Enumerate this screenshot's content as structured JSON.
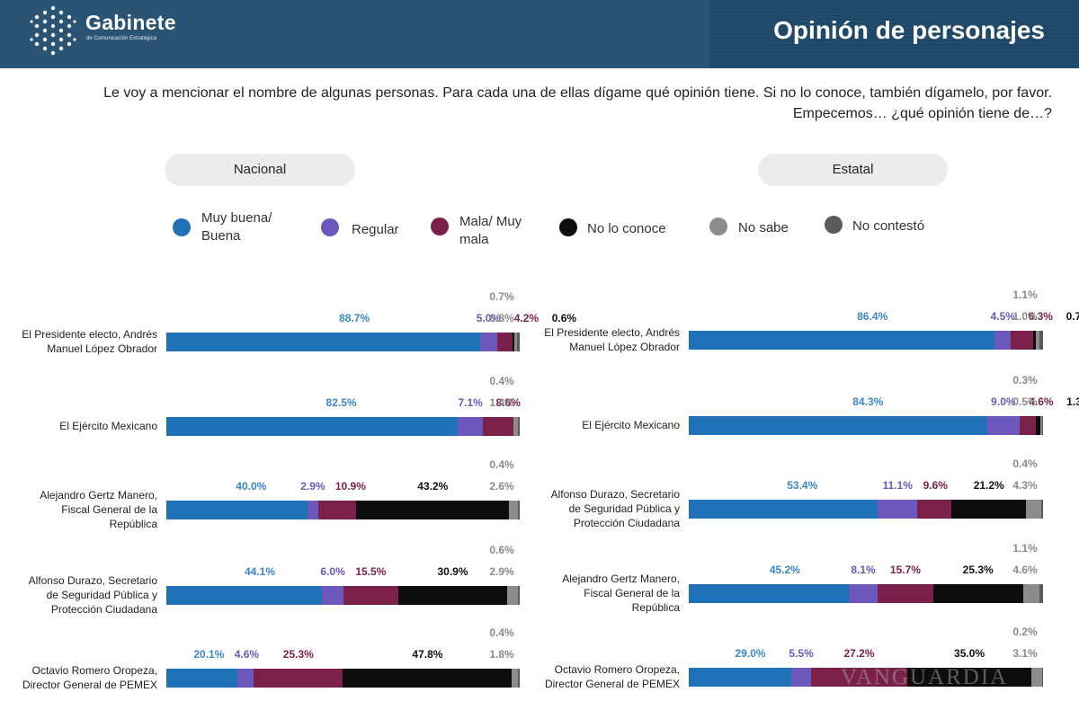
{
  "header": {
    "brand_name": "Gabinete",
    "brand_sub": "de Comunicación Estratégica",
    "title": "Opinión de personajes",
    "logo_icon": "dotted-cube-logo-icon"
  },
  "question": "Le voy a mencionar el nombre de algunas personas. Para cada una de ellas dígame qué opinión tiene. Si no lo conoce, también dígamelo, por favor. Empecemos… ¿qué opinión tiene de…?",
  "watermark": "VANGUARDIA",
  "legend": [
    {
      "label": "Muy buena/ Buena",
      "color": "#1f72b8"
    },
    {
      "label": "Regular",
      "color": "#6c57bd"
    },
    {
      "label": "Mala/ Muy mala",
      "color": "#7b1f4b"
    },
    {
      "label": "No lo conoce",
      "color": "#0d0d0d"
    },
    {
      "label": "No sabe",
      "color": "#8c8c8c"
    },
    {
      "label": "No contestó",
      "color": "#5a5a5a"
    }
  ],
  "chart_data": [
    {
      "type": "bar",
      "stacked": true,
      "orientation": "horizontal",
      "title": "Nacional",
      "series_names": [
        "Muy buena/ Buena",
        "Regular",
        "Mala/ Muy mala",
        "No lo conoce",
        "No sabe",
        "No contestó"
      ],
      "rows": [
        {
          "label": "El Presidente electo, Andrés Manuel López Obrador",
          "values": [
            88.7,
            5.0,
            4.2,
            0.6,
            0.8,
            0.7
          ]
        },
        {
          "label": "El Ejército Mexicano",
          "values": [
            82.5,
            7.1,
            8.6,
            null,
            1.4,
            0.4
          ]
        },
        {
          "label": "Alejandro Gertz Manero, Fiscal General de la República",
          "values": [
            40.0,
            2.9,
            10.9,
            43.2,
            2.6,
            0.4
          ]
        },
        {
          "label": "Alfonso Durazo, Secretario de Seguridad Pública y Protección Ciudadana",
          "values": [
            44.1,
            6.0,
            15.5,
            30.9,
            2.9,
            0.6
          ]
        },
        {
          "label": "Octavio Romero Oropeza, Director General de PEMEX",
          "values": [
            20.1,
            4.6,
            25.3,
            47.8,
            1.8,
            0.4
          ]
        }
      ]
    },
    {
      "type": "bar",
      "stacked": true,
      "orientation": "horizontal",
      "title": "Estatal",
      "series_names": [
        "Muy buena/ Buena",
        "Regular",
        "Mala/ Muy mala",
        "No lo conoce",
        "No sabe",
        "No contestó"
      ],
      "rows": [
        {
          "label": "El Presidente electo, Andrés Manuel López Obrador",
          "values": [
            86.4,
            4.5,
            6.3,
            0.7,
            1.0,
            1.1
          ]
        },
        {
          "label": "El Ejército Mexicano",
          "values": [
            84.3,
            9.0,
            4.6,
            1.3,
            0.5,
            0.3
          ]
        },
        {
          "label": "Alfonso Durazo, Secretario de Seguridad Pública y Protección Ciudadana",
          "values": [
            53.4,
            11.1,
            9.6,
            21.2,
            4.3,
            0.4
          ]
        },
        {
          "label": "Alejandro Gertz Manero, Fiscal General de la República",
          "values": [
            45.2,
            8.1,
            15.7,
            25.3,
            4.6,
            1.1
          ]
        },
        {
          "label": "Octavio Romero Oropeza, Director General de PEMEX",
          "values": [
            29.0,
            5.5,
            27.2,
            35.0,
            3.1,
            0.2
          ]
        }
      ]
    }
  ]
}
